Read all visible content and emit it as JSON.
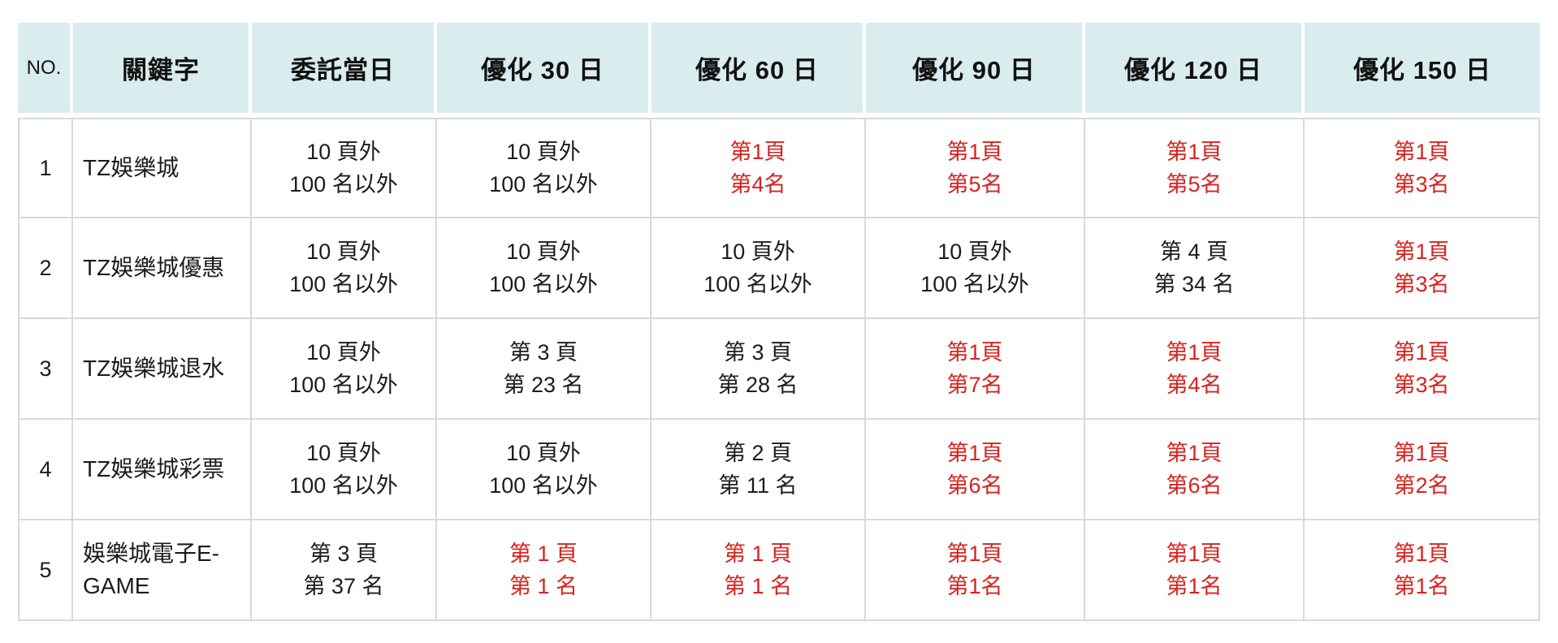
{
  "table": {
    "colors": {
      "header_bg": "#d9ecee",
      "highlight_red": "#d8231f",
      "text_black": "#1c1c1c",
      "grid_border": "#d9d9d9",
      "page_background": "#ffffff"
    },
    "columns": [
      "NO.",
      "關鍵字",
      "委託當日",
      "優化 30 日",
      "優化 60 日",
      "優化 90 日",
      "優化 120 日",
      "優化 150 日"
    ],
    "rows": [
      {
        "no": "1",
        "keyword": "TZ娛樂城",
        "cells": [
          {
            "line1": "10 頁外",
            "line2": "100 名以外",
            "highlight": false
          },
          {
            "line1": "10 頁外",
            "line2": "100 名以外",
            "highlight": false
          },
          {
            "line1": "第1頁",
            "line2": "第4名",
            "highlight": true
          },
          {
            "line1": "第1頁",
            "line2": "第5名",
            "highlight": true
          },
          {
            "line1": "第1頁",
            "line2": "第5名",
            "highlight": true
          },
          {
            "line1": "第1頁",
            "line2": "第3名",
            "highlight": true
          }
        ]
      },
      {
        "no": "2",
        "keyword": "TZ娛樂城優惠",
        "cells": [
          {
            "line1": "10 頁外",
            "line2": "100 名以外",
            "highlight": false
          },
          {
            "line1": "10 頁外",
            "line2": "100 名以外",
            "highlight": false
          },
          {
            "line1": "10 頁外",
            "line2": "100 名以外",
            "highlight": false
          },
          {
            "line1": "10 頁外",
            "line2": "100 名以外",
            "highlight": false
          },
          {
            "line1": "第 4 頁",
            "line2": "第 34 名",
            "highlight": false
          },
          {
            "line1": "第1頁",
            "line2": "第3名",
            "highlight": true
          }
        ]
      },
      {
        "no": "3",
        "keyword": "TZ娛樂城退水",
        "cells": [
          {
            "line1": "10 頁外",
            "line2": "100 名以外",
            "highlight": false
          },
          {
            "line1": "第 3 頁",
            "line2": "第 23 名",
            "highlight": false
          },
          {
            "line1": "第 3 頁",
            "line2": "第 28 名",
            "highlight": false
          },
          {
            "line1": "第1頁",
            "line2": "第7名",
            "highlight": true
          },
          {
            "line1": "第1頁",
            "line2": "第4名",
            "highlight": true
          },
          {
            "line1": "第1頁",
            "line2": "第3名",
            "highlight": true
          }
        ]
      },
      {
        "no": "4",
        "keyword": "TZ娛樂城彩票",
        "cells": [
          {
            "line1": "10 頁外",
            "line2": "100 名以外",
            "highlight": false
          },
          {
            "line1": "10 頁外",
            "line2": "100 名以外",
            "highlight": false
          },
          {
            "line1": "第 2 頁",
            "line2": "第 11 名",
            "highlight": false
          },
          {
            "line1": "第1頁",
            "line2": "第6名",
            "highlight": true
          },
          {
            "line1": "第1頁",
            "line2": "第6名",
            "highlight": true
          },
          {
            "line1": "第1頁",
            "line2": "第2名",
            "highlight": true
          }
        ]
      },
      {
        "no": "5",
        "keyword": "娛樂城電子E-GAME",
        "cells": [
          {
            "line1": "第 3 頁",
            "line2": "第 37 名",
            "highlight": false
          },
          {
            "line1": "第 1 頁",
            "line2": "第 1 名",
            "highlight": true
          },
          {
            "line1": "第 1 頁",
            "line2": "第 1 名",
            "highlight": true
          },
          {
            "line1": "第1頁",
            "line2": "第1名",
            "highlight": true
          },
          {
            "line1": "第1頁",
            "line2": "第1名",
            "highlight": true
          },
          {
            "line1": "第1頁",
            "line2": "第1名",
            "highlight": true
          }
        ]
      }
    ]
  }
}
